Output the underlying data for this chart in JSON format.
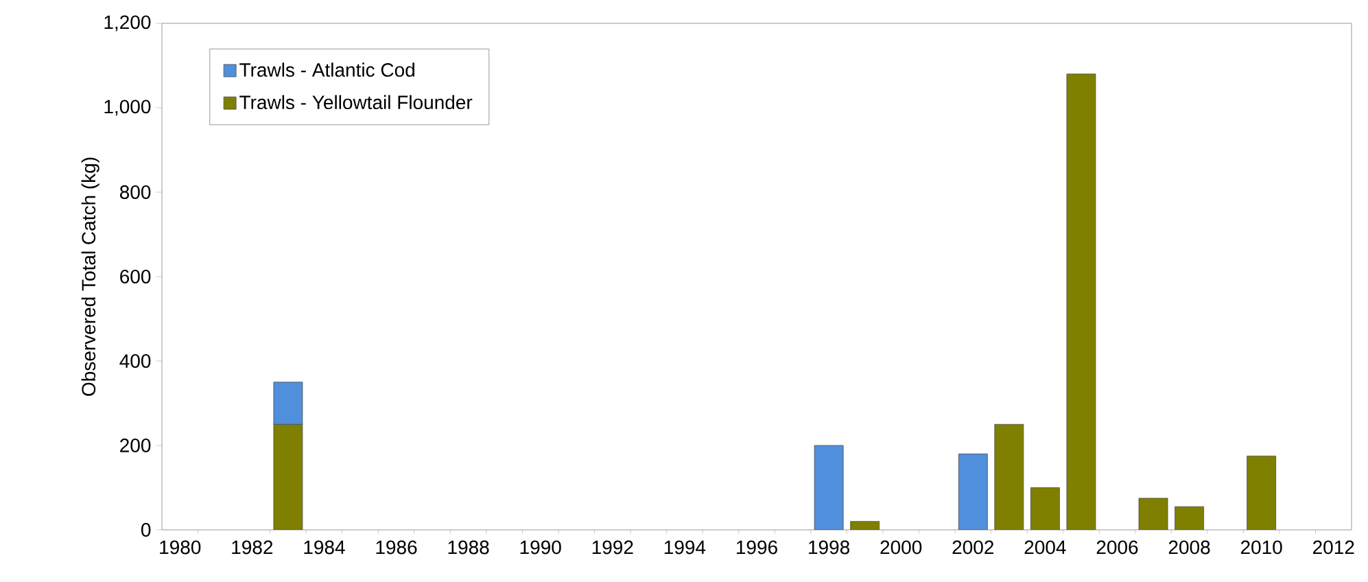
{
  "chart_data": {
    "type": "bar",
    "stacked": true,
    "ylabel": "Observered Total Catch (kg)",
    "x": [
      1983,
      1998,
      1999,
      2002,
      2003,
      2004,
      2005,
      2007,
      2008,
      2010
    ],
    "series": [
      {
        "name": "Trawls - Yellowtail Flounder",
        "color": "#7f7f00",
        "values": [
          250,
          null,
          20,
          null,
          250,
          100,
          1080,
          75,
          55,
          175
        ]
      },
      {
        "name": "Trawls - Atlantic Cod",
        "color": "#4f8fdc",
        "values": [
          100,
          200,
          null,
          180,
          null,
          null,
          null,
          null,
          null,
          null
        ]
      }
    ],
    "xlim": [
      1979.5,
      2012.5
    ],
    "xticks": [
      1980,
      {
        "value": 1980.5,
        "label": null
      },
      1982,
      {
        "value": 1982.5,
        "label": null
      },
      {
        "value": 1983.5,
        "label": null
      },
      1984,
      {
        "value": 1984.5,
        "label": null
      },
      {
        "value": 1985.5,
        "label": null
      },
      1986,
      {
        "value": 1986.5,
        "label": null
      },
      {
        "value": 1987.5,
        "label": null
      },
      1988,
      {
        "value": 1988.5,
        "label": null
      },
      {
        "value": 1989.5,
        "label": null
      },
      1990,
      {
        "value": 1990.5,
        "label": null
      },
      {
        "value": 1991.5,
        "label": null
      },
      1992,
      {
        "value": 1992.5,
        "label": null
      },
      {
        "value": 1993.5,
        "label": null
      },
      1994,
      {
        "value": 1994.5,
        "label": null
      },
      {
        "value": 1995.5,
        "label": null
      },
      1996,
      {
        "value": 1996.5,
        "label": null
      },
      {
        "value": 1997.5,
        "label": null
      },
      1998,
      {
        "value": 1998.5,
        "label": null
      },
      {
        "value": 1999.5,
        "label": null
      },
      2000,
      {
        "value": 2000.5,
        "label": null
      },
      {
        "value": 2001.5,
        "label": null
      },
      2002,
      {
        "value": 2002.5,
        "label": null
      },
      {
        "value": 2003.5,
        "label": null
      },
      2004,
      {
        "value": 2004.5,
        "label": null
      },
      {
        "value": 2005.5,
        "label": null
      },
      2006,
      {
        "value": 2006.5,
        "label": null
      },
      {
        "value": 2007.5,
        "label": null
      },
      2008,
      {
        "value": 2008.5,
        "label": null
      },
      {
        "value": 2009.5,
        "label": null
      },
      2010,
      {
        "value": 2010.5,
        "label": null
      },
      {
        "value": 2011.5,
        "label": null
      },
      2012
    ],
    "ylim": [
      0,
      1200
    ],
    "yticks": [
      {
        "value": 0,
        "label": "0"
      },
      {
        "value": 200,
        "label": "200"
      },
      {
        "value": 400,
        "label": "400"
      },
      {
        "value": 600,
        "label": "600"
      },
      {
        "value": 800,
        "label": "800"
      },
      {
        "value": 1000,
        "label": "1,000"
      },
      {
        "value": 1200,
        "label": "1,200"
      }
    ],
    "legend": "top left"
  }
}
